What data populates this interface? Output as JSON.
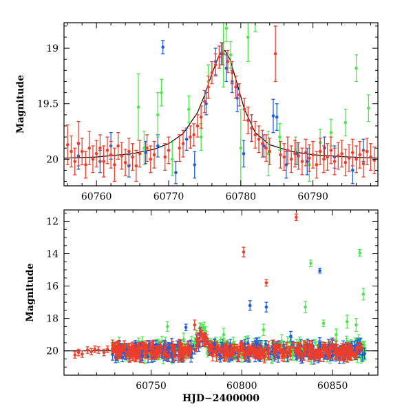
{
  "chart_data": [
    {
      "type": "scatter",
      "panel": "top",
      "title": "",
      "xlabel": "",
      "ylabel": "Magnitude",
      "xlim": [
        60755.5,
        60799
      ],
      "ylim": [
        20.24,
        18.77
      ],
      "y_inverted": true,
      "xticks": [
        60760,
        60770,
        60780,
        60790
      ],
      "xtick_labels": [
        "60760",
        "60770",
        "60780",
        "60790"
      ],
      "yticks": [
        19,
        19.5,
        20
      ],
      "ytick_labels": [
        "19",
        "19.5",
        "20"
      ],
      "grid": false,
      "legend": "none",
      "colors": {
        "blue": "#1f5fdb",
        "green": "#4de84d",
        "red": "#ef3d2a",
        "model": "#000000"
      },
      "model": {
        "x": [
          60755.5,
          60760,
          60765,
          60768,
          60770,
          60772,
          60774,
          60775,
          60776,
          60777,
          60777.8,
          60778.5,
          60779.5,
          60780.5,
          60782,
          60784,
          60787,
          60790,
          60795,
          60799
        ],
        "y": [
          19.99,
          19.98,
          19.95,
          19.91,
          19.86,
          19.77,
          19.58,
          19.42,
          19.23,
          19.06,
          19.02,
          19.1,
          19.32,
          19.55,
          19.76,
          19.87,
          19.93,
          19.96,
          19.98,
          19.99
        ]
      },
      "series": [
        {
          "color": "blue",
          "points": [
            [
              60769.2,
              18.99,
              0.06
            ],
            [
              60776.5,
              19.12,
              0.12
            ],
            [
              60777.3,
              19.05,
              0.1
            ],
            [
              60778.0,
              19.18,
              0.12
            ],
            [
              60778.8,
              19.3,
              0.1
            ],
            [
              60780.4,
              19.95,
              0.12
            ],
            [
              60784.5,
              19.61,
              0.15
            ],
            [
              60785.0,
              19.62,
              0.12
            ],
            [
              60786.3,
              20.05,
              0.12
            ],
            [
              60771.0,
              20.12,
              0.1
            ],
            [
              60773.6,
              20.05,
              0.12
            ],
            [
              60791.6,
              19.9,
              0.1
            ],
            [
              60795.5,
              20.1,
              0.12
            ],
            [
              60757.5,
              19.97,
              0.12
            ],
            [
              60760.5,
              20.02,
              0.1
            ],
            [
              60762.0,
              19.88,
              0.12
            ],
            [
              60764.5,
              20.06,
              0.1
            ],
            [
              60766.8,
              19.94,
              0.1
            ],
            [
              60768.5,
              19.88,
              0.1
            ],
            [
              60772.5,
              19.82,
              0.1
            ],
            [
              60775.2,
              19.5,
              0.1
            ],
            [
              60779.5,
              19.45,
              0.12
            ],
            [
              60781.5,
              19.72,
              0.12
            ],
            [
              60783.2,
              19.88,
              0.1
            ],
            [
              60787.8,
              19.95,
              0.1
            ],
            [
              60789.2,
              20.02,
              0.12
            ],
            [
              60793.0,
              19.98,
              0.1
            ],
            [
              60797.0,
              19.92,
              0.1
            ]
          ]
        },
        {
          "color": "green",
          "points": [
            [
              60765.8,
              19.53,
              0.3
            ],
            [
              60768.5,
              19.6,
              0.2
            ],
            [
              60769.0,
              19.4,
              0.12
            ],
            [
              60772.8,
              19.55,
              0.12
            ],
            [
              60774.5,
              19.8,
              0.12
            ],
            [
              60777.6,
              19.05,
              0.3
            ],
            [
              60778.0,
              18.82,
              0.12
            ],
            [
              60778.6,
              19.06,
              0.12
            ],
            [
              60780.0,
              19.9,
              0.35
            ],
            [
              60781.0,
              18.9,
              0.22
            ],
            [
              60782.0,
              18.75,
              0.1
            ],
            [
              60785.4,
              19.8,
              0.12
            ],
            [
              60787.6,
              19.92,
              0.12
            ],
            [
              60792.5,
              19.76,
              0.12
            ],
            [
              60794.5,
              19.67,
              0.12
            ],
            [
              60796.0,
              19.18,
              0.12
            ],
            [
              60797.7,
              19.54,
              0.12
            ],
            [
              60770.5,
              20.0,
              0.15
            ],
            [
              60775.5,
              19.3,
              0.15
            ],
            [
              60783.8,
              19.95,
              0.2
            ],
            [
              60789.5,
              20.05,
              0.15
            ],
            [
              60766.6,
              19.9,
              0.15
            ],
            [
              60791.0,
              19.85,
              0.12
            ]
          ]
        },
        {
          "color": "red",
          "points": [
            [
              60756.0,
              19.87,
              0.18
            ],
            [
              60756.5,
              19.93,
              0.14
            ],
            [
              60757.0,
              20.02,
              0.12
            ],
            [
              60757.5,
              19.86,
              0.2
            ],
            [
              60758.0,
              19.93,
              0.12
            ],
            [
              60758.5,
              20.05,
              0.12
            ],
            [
              60759.0,
              19.9,
              0.15
            ],
            [
              60759.5,
              20.0,
              0.12
            ],
            [
              60760.0,
              19.95,
              0.12
            ],
            [
              60760.5,
              19.9,
              0.12
            ],
            [
              60761.0,
              20.02,
              0.14
            ],
            [
              60761.5,
              19.92,
              0.12
            ],
            [
              60762.0,
              19.96,
              0.12
            ],
            [
              60762.5,
              20.05,
              0.15
            ],
            [
              60763.0,
              19.88,
              0.12
            ],
            [
              60763.5,
              19.97,
              0.12
            ],
            [
              60764.0,
              20.03,
              0.12
            ],
            [
              60764.5,
              19.93,
              0.12
            ],
            [
              60765.0,
              19.98,
              0.12
            ],
            [
              60765.5,
              20.06,
              0.14
            ],
            [
              60766.0,
              19.95,
              0.12
            ],
            [
              60767.0,
              19.9,
              0.12
            ],
            [
              60767.5,
              20.0,
              0.12
            ],
            [
              60768.0,
              19.96,
              0.12
            ],
            [
              60769.5,
              19.98,
              0.12
            ],
            [
              60770.0,
              19.92,
              0.12
            ],
            [
              60771.5,
              19.9,
              0.12
            ],
            [
              60772.0,
              19.86,
              0.12
            ],
            [
              60773.0,
              19.8,
              0.1
            ],
            [
              60773.5,
              19.78,
              0.1
            ],
            [
              60774.0,
              19.7,
              0.1
            ],
            [
              60774.5,
              19.62,
              0.1
            ],
            [
              60775.0,
              19.48,
              0.1
            ],
            [
              60775.5,
              19.35,
              0.1
            ],
            [
              60776.0,
              19.22,
              0.1
            ],
            [
              60776.5,
              19.15,
              0.1
            ],
            [
              60777.0,
              19.08,
              0.1
            ],
            [
              60777.5,
              19.05,
              0.1
            ],
            [
              60778.2,
              19.12,
              0.1
            ],
            [
              60778.8,
              19.22,
              0.1
            ],
            [
              60779.3,
              19.35,
              0.1
            ],
            [
              60779.8,
              19.42,
              0.1
            ],
            [
              60780.5,
              19.55,
              0.1
            ],
            [
              60781.0,
              19.65,
              0.12
            ],
            [
              60781.5,
              19.72,
              0.12
            ],
            [
              60782.0,
              19.78,
              0.12
            ],
            [
              60782.5,
              19.82,
              0.12
            ],
            [
              60783.0,
              19.86,
              0.12
            ],
            [
              60783.5,
              19.9,
              0.12
            ],
            [
              60784.0,
              19.93,
              0.12
            ],
            [
              60784.8,
              19.05,
              0.25
            ],
            [
              60785.5,
              19.96,
              0.12
            ],
            [
              60786.0,
              19.98,
              0.12
            ],
            [
              60786.5,
              19.92,
              0.12
            ],
            [
              60787.0,
              20.0,
              0.12
            ],
            [
              60787.5,
              19.95,
              0.12
            ],
            [
              60788.0,
              19.97,
              0.12
            ],
            [
              60788.5,
              20.02,
              0.12
            ],
            [
              60789.0,
              19.94,
              0.12
            ],
            [
              60789.5,
              19.99,
              0.12
            ],
            [
              60790.0,
              19.96,
              0.12
            ],
            [
              60790.5,
              20.05,
              0.12
            ],
            [
              60791.0,
              19.93,
              0.12
            ],
            [
              60791.5,
              20.0,
              0.12
            ],
            [
              60792.0,
              19.98,
              0.12
            ],
            [
              60792.5,
              19.92,
              0.12
            ],
            [
              60793.0,
              20.02,
              0.12
            ],
            [
              60793.5,
              19.97,
              0.12
            ],
            [
              60794.0,
              19.95,
              0.12
            ],
            [
              60794.5,
              20.03,
              0.12
            ],
            [
              60795.0,
              19.99,
              0.12
            ],
            [
              60795.5,
              19.94,
              0.12
            ],
            [
              60796.0,
              20.0,
              0.12
            ],
            [
              60796.5,
              19.96,
              0.12
            ],
            [
              60797.0,
              20.04,
              0.12
            ],
            [
              60797.5,
              19.93,
              0.12
            ],
            [
              60798.0,
              19.98,
              0.12
            ],
            [
              60798.5,
              20.01,
              0.12
            ]
          ]
        }
      ]
    },
    {
      "type": "scatter",
      "panel": "bottom",
      "title": "",
      "xlabel": "HJD−2400000",
      "ylabel": "Magnitude",
      "xlim": [
        60702,
        60875
      ],
      "ylim": [
        21.5,
        11.3
      ],
      "y_inverted": true,
      "xticks": [
        60750,
        60800,
        60850
      ],
      "xtick_labels": [
        "60750",
        "60800",
        "60850"
      ],
      "yticks": [
        12,
        14,
        16,
        18,
        20
      ],
      "ytick_labels": [
        "12",
        "14",
        "16",
        "18",
        "20"
      ],
      "grid": false,
      "legend": "none",
      "colors": {
        "blue": "#1f5fdb",
        "green": "#4de84d",
        "red": "#ef3d2a",
        "model": "#000000"
      },
      "model": {
        "x": [
          60702,
          60740,
          60760,
          60768,
          60772,
          60775,
          60777.8,
          60780.5,
          60784,
          60790,
          60820,
          60875
        ],
        "y": [
          20.0,
          20.0,
          19.97,
          19.9,
          19.75,
          19.4,
          19.02,
          19.55,
          19.87,
          19.96,
          20.0,
          20.0
        ]
      },
      "series": [
        {
          "color": "blue",
          "points": [
            [
              60769.2,
              18.55,
              0.2
            ],
            [
              60804.5,
              17.2,
              0.3
            ],
            [
              60813.5,
              17.3,
              0.3
            ],
            [
              60843.0,
              15.05,
              0.15
            ],
            [
              60808.0,
              19.5,
              0.3
            ],
            [
              60827.0,
              19.1,
              0.3
            ],
            [
              60745.0,
              20.3,
              0.3
            ],
            [
              60760.0,
              19.8,
              0.3
            ],
            [
              60785.0,
              19.6,
              0.3
            ],
            [
              60820.0,
              20.4,
              0.3
            ],
            [
              60850.0,
              20.3,
              0.3
            ],
            [
              60862.0,
              19.7,
              0.3
            ]
          ]
        },
        {
          "color": "green",
          "points": [
            [
              60759.0,
              18.5,
              0.3
            ],
            [
              60768.0,
              19.3,
              0.4
            ],
            [
              60790.0,
              19.0,
              0.4
            ],
            [
              60812.0,
              18.7,
              0.35
            ],
            [
              60822.0,
              19.4,
              0.4
            ],
            [
              60835.0,
              17.3,
              0.35
            ],
            [
              60838.0,
              14.6,
              0.2
            ],
            [
              60845.0,
              18.3,
              0.2
            ],
            [
              60852.0,
              19.0,
              0.35
            ],
            [
              60858.0,
              18.2,
              0.4
            ],
            [
              60863.0,
              18.4,
              0.4
            ],
            [
              60865.0,
              13.95,
              0.2
            ],
            [
              60867.0,
              16.5,
              0.35
            ],
            [
              60774.0,
              19.5,
              0.3
            ],
            [
              60800.0,
              20.4,
              0.3
            ],
            [
              60828.0,
              20.2,
              0.3
            ]
          ]
        },
        {
          "color": "red",
          "points": [
            [
              60708.0,
              20.25,
              0.2
            ],
            [
              60710.0,
              20.1,
              0.2
            ],
            [
              60712.0,
              20.2,
              0.2
            ],
            [
              60715.0,
              19.95,
              0.2
            ],
            [
              60717.0,
              20.05,
              0.2
            ],
            [
              60719.0,
              19.9,
              0.2
            ],
            [
              60721.0,
              19.95,
              0.2
            ],
            [
              60724.0,
              20.1,
              0.2
            ],
            [
              60726.0,
              19.9,
              0.2
            ],
            [
              60774.0,
              18.4,
              0.3
            ],
            [
              60779.5,
              19.4,
              0.3
            ],
            [
              60801.0,
              13.9,
              0.3
            ],
            [
              60813.5,
              15.8,
              0.2
            ],
            [
              60830.0,
              11.75,
              0.2
            ],
            [
              60850.0,
              19.6,
              0.3
            ],
            [
              60865.0,
              19.8,
              0.3
            ]
          ]
        }
      ],
      "dense_bands": [
        {
          "color": "green",
          "x_range": [
            60728,
            60868
          ],
          "center": 19.95,
          "spread": 0.55,
          "count": 210,
          "seed": 7
        },
        {
          "color": "blue",
          "x_range": [
            60728,
            60868
          ],
          "center": 20.0,
          "spread": 0.45,
          "count": 260,
          "seed": 13
        },
        {
          "color": "red",
          "x_range": [
            60728,
            60868
          ],
          "center": 20.02,
          "spread": 0.35,
          "count": 360,
          "seed": 29
        }
      ]
    }
  ]
}
